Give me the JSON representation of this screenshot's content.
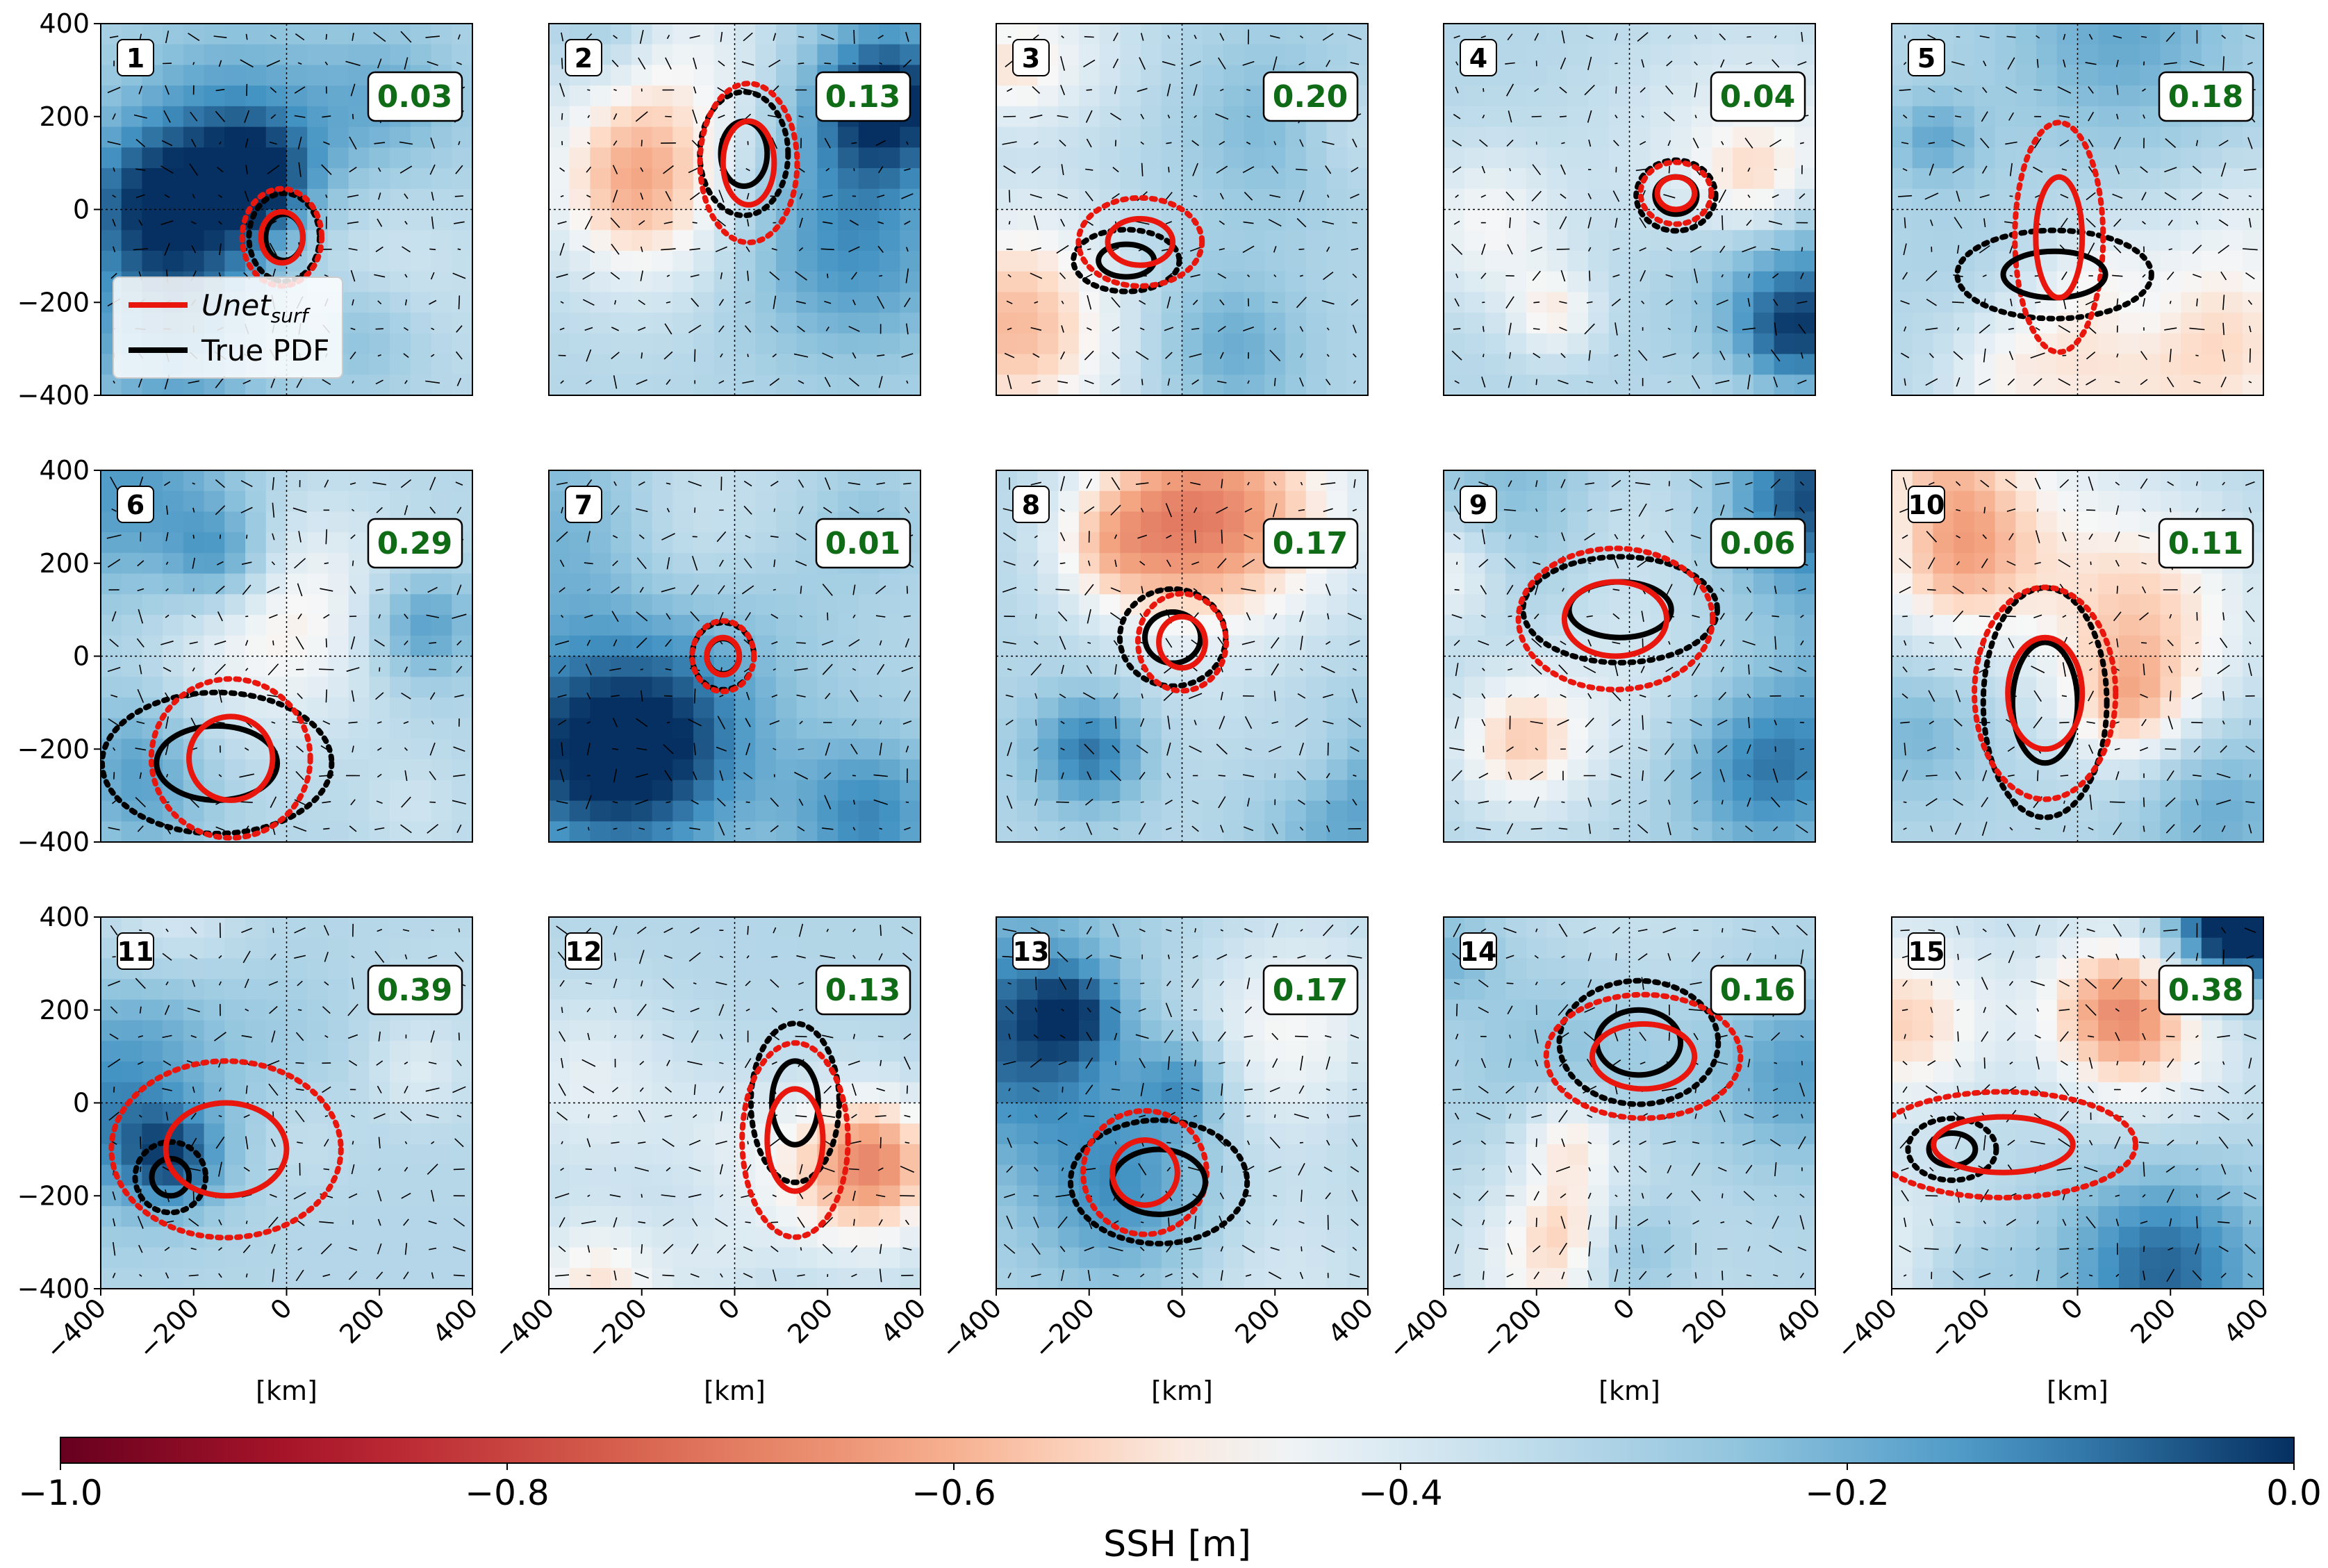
{
  "chart_data": {
    "type": "heatmap",
    "description_panels": "15 small-multiple map panels of sea surface height with velocity quivers and probability contours",
    "x_label": "[km]",
    "x_ticks": [
      "−400",
      "−200",
      "0",
      "200",
      "400"
    ],
    "y_ticks": [
      "400",
      "200",
      "0",
      "−200",
      "−400"
    ],
    "xlim": [
      -400,
      400
    ],
    "ylim": [
      -400,
      400
    ],
    "grid": "dotted crosshair at 0",
    "legend": {
      "placement": "lower-left of panel 1",
      "entries": [
        {
          "label": "Unet",
          "subscript": "surf",
          "color": "#e8160c"
        },
        {
          "label": "True PDF",
          "color": "#000000"
        }
      ]
    },
    "colorbar": {
      "label": "SSH [m]",
      "range": [
        -1.0,
        0.0
      ],
      "colormap": "RdBu",
      "ticks": [
        "−1.0",
        "−0.8",
        "−0.6",
        "−0.4",
        "−0.2",
        "0.0"
      ]
    },
    "score_color": "#0f6b16",
    "panels": [
      {
        "id": "1",
        "score": "0.03",
        "red": {
          "cx": -10,
          "cy": -60,
          "rx": 45,
          "ry": 55
        },
        "black": {
          "cx": -5,
          "cy": -60,
          "rx": 40,
          "ry": 50
        }
      },
      {
        "id": "2",
        "score": "0.13",
        "red": {
          "cx": 30,
          "cy": 100,
          "rx": 55,
          "ry": 90
        },
        "black": {
          "cx": 20,
          "cy": 120,
          "rx": 50,
          "ry": 70
        }
      },
      {
        "id": "3",
        "score": "0.20",
        "red": {
          "cx": -90,
          "cy": -70,
          "rx": 70,
          "ry": 50
        },
        "black": {
          "cx": -120,
          "cy": -110,
          "rx": 60,
          "ry": 35
        }
      },
      {
        "id": "4",
        "score": "0.04",
        "red": {
          "cx": 100,
          "cy": 35,
          "rx": 40,
          "ry": 35
        },
        "black": {
          "cx": 100,
          "cy": 30,
          "rx": 45,
          "ry": 40
        }
      },
      {
        "id": "5",
        "score": "0.18",
        "red": {
          "cx": -40,
          "cy": -60,
          "rx": 50,
          "ry": 130
        },
        "black": {
          "cx": -50,
          "cy": -140,
          "rx": 110,
          "ry": 50
        }
      },
      {
        "id": "6",
        "score": "0.29",
        "red": {
          "cx": -120,
          "cy": -220,
          "rx": 90,
          "ry": 90
        },
        "black": {
          "cx": -150,
          "cy": -230,
          "rx": 130,
          "ry": 80
        }
      },
      {
        "id": "7",
        "score": "0.01",
        "red": {
          "cx": -25,
          "cy": 0,
          "rx": 35,
          "ry": 40
        },
        "black": {
          "cx": -25,
          "cy": 0,
          "rx": 35,
          "ry": 38
        }
      },
      {
        "id": "8",
        "score": "0.17",
        "red": {
          "cx": 0,
          "cy": 30,
          "rx": 50,
          "ry": 55
        },
        "black": {
          "cx": -20,
          "cy": 40,
          "rx": 60,
          "ry": 55
        }
      },
      {
        "id": "9",
        "score": "0.06",
        "red": {
          "cx": -30,
          "cy": 80,
          "rx": 110,
          "ry": 80
        },
        "black": {
          "cx": -20,
          "cy": 100,
          "rx": 110,
          "ry": 60
        }
      },
      {
        "id": "10",
        "score": "0.11",
        "red": {
          "cx": -70,
          "cy": -80,
          "rx": 80,
          "ry": 120
        },
        "black": {
          "cx": -70,
          "cy": -100,
          "rx": 70,
          "ry": 130
        }
      },
      {
        "id": "11",
        "score": "0.39",
        "red": {
          "cx": -130,
          "cy": -100,
          "rx": 130,
          "ry": 100
        },
        "black": {
          "cx": -250,
          "cy": -160,
          "rx": 40,
          "ry": 40
        }
      },
      {
        "id": "12",
        "score": "0.13",
        "red": {
          "cx": 130,
          "cy": -80,
          "rx": 60,
          "ry": 110
        },
        "black": {
          "cx": 130,
          "cy": 0,
          "rx": 50,
          "ry": 90
        }
      },
      {
        "id": "13",
        "score": "0.17",
        "red": {
          "cx": -80,
          "cy": -150,
          "rx": 70,
          "ry": 70
        },
        "black": {
          "cx": -50,
          "cy": -170,
          "rx": 100,
          "ry": 70
        }
      },
      {
        "id": "14",
        "score": "0.16",
        "red": {
          "cx": 30,
          "cy": 100,
          "rx": 110,
          "ry": 70
        },
        "black": {
          "cx": 20,
          "cy": 130,
          "rx": 90,
          "ry": 70
        }
      },
      {
        "id": "15",
        "score": "0.38",
        "red": {
          "cx": -160,
          "cy": -90,
          "rx": 150,
          "ry": 60
        },
        "black": {
          "cx": -270,
          "cy": -100,
          "rx": 50,
          "ry": 35
        }
      }
    ]
  }
}
